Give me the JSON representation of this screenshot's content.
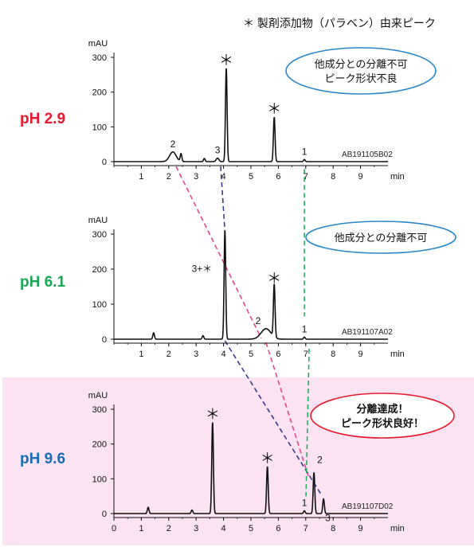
{
  "legend_note": "＊ 製剤添加物（パラベン）由来ピーク",
  "colors": {
    "ph29": "#e8192c",
    "ph61": "#1aa655",
    "ph96": "#1a6db5",
    "pink_dash": "#e8448f",
    "navy_dash": "#3a3a8c",
    "green_dash": "#22b060",
    "callout_blue": "#2a86c8",
    "callout_red": "#e8192c",
    "callout_red_text": "#e0168a",
    "panel3_bg": "#fbe3f4"
  },
  "chart_data": [
    {
      "type": "line",
      "ph_label": "pH 2.9",
      "y_unit": "mAU",
      "x_unit": "min",
      "xlim": [
        0,
        10
      ],
      "ylim": [
        0,
        300
      ],
      "x_ticks": [
        1,
        2,
        3,
        4,
        5,
        6,
        7,
        8,
        9
      ],
      "y_ticks": [
        0,
        100,
        200,
        300
      ],
      "sample_code": "AB191105B02",
      "callout": [
        "他成分との分離不可",
        "ピーク形状不良"
      ],
      "peaks": [
        {
          "t": 2.15,
          "h": 28,
          "w": 0.12,
          "label": "2"
        },
        {
          "t": 2.45,
          "h": 22,
          "w": 0.03,
          "label": ""
        },
        {
          "t": 3.3,
          "h": 9,
          "w": 0.03,
          "label": ""
        },
        {
          "t": 3.78,
          "h": 10,
          "w": 0.05,
          "label": "3"
        },
        {
          "t": 4.1,
          "h": 268,
          "w": 0.03,
          "label": "＊"
        },
        {
          "t": 5.85,
          "h": 128,
          "w": 0.03,
          "label": "＊"
        },
        {
          "t": 6.95,
          "h": 6,
          "w": 0.03,
          "label": "1"
        }
      ]
    },
    {
      "type": "line",
      "ph_label": "pH 6.1",
      "y_unit": "mAU",
      "x_unit": "min",
      "xlim": [
        0,
        10
      ],
      "ylim": [
        0,
        300
      ],
      "x_ticks": [
        1,
        2,
        3,
        4,
        5,
        6,
        7,
        8,
        9
      ],
      "y_ticks": [
        0,
        100,
        200,
        300
      ],
      "sample_code": "AB191107A02",
      "callout": [
        "他成分との分離不可"
      ],
      "peaks": [
        {
          "t": 1.45,
          "h": 18,
          "w": 0.03,
          "label": ""
        },
        {
          "t": 3.25,
          "h": 10,
          "w": 0.03,
          "label": ""
        },
        {
          "t": 4.05,
          "h": 310,
          "w": 0.03,
          "label": "3+＊"
        },
        {
          "t": 5.55,
          "h": 30,
          "w": 0.18,
          "label": "2"
        },
        {
          "t": 5.85,
          "h": 150,
          "w": 0.03,
          "label": "＊"
        },
        {
          "t": 6.95,
          "h": 6,
          "w": 0.03,
          "label": "1"
        }
      ]
    },
    {
      "type": "line",
      "ph_label": "pH 9.6",
      "y_unit": "mAU",
      "x_unit": "min",
      "xlim": [
        0,
        10
      ],
      "ylim": [
        0,
        300
      ],
      "x_ticks": [
        0,
        1,
        2,
        3,
        4,
        5,
        6,
        7,
        8,
        9
      ],
      "y_ticks": [
        0,
        100,
        200,
        300
      ],
      "sample_code": "AB191107D02",
      "callout": [
        "分離達成！",
        "ピーク形状良好！"
      ],
      "peaks": [
        {
          "t": 1.25,
          "h": 18,
          "w": 0.03,
          "label": ""
        },
        {
          "t": 2.85,
          "h": 10,
          "w": 0.03,
          "label": ""
        },
        {
          "t": 3.6,
          "h": 262,
          "w": 0.03,
          "label": "＊"
        },
        {
          "t": 5.6,
          "h": 135,
          "w": 0.03,
          "label": "＊"
        },
        {
          "t": 6.95,
          "h": 8,
          "w": 0.03,
          "label": "1"
        },
        {
          "t": 7.3,
          "h": 118,
          "w": 0.03,
          "label": "2"
        },
        {
          "t": 7.65,
          "h": 42,
          "w": 0.03,
          "label": "3"
        }
      ]
    }
  ]
}
